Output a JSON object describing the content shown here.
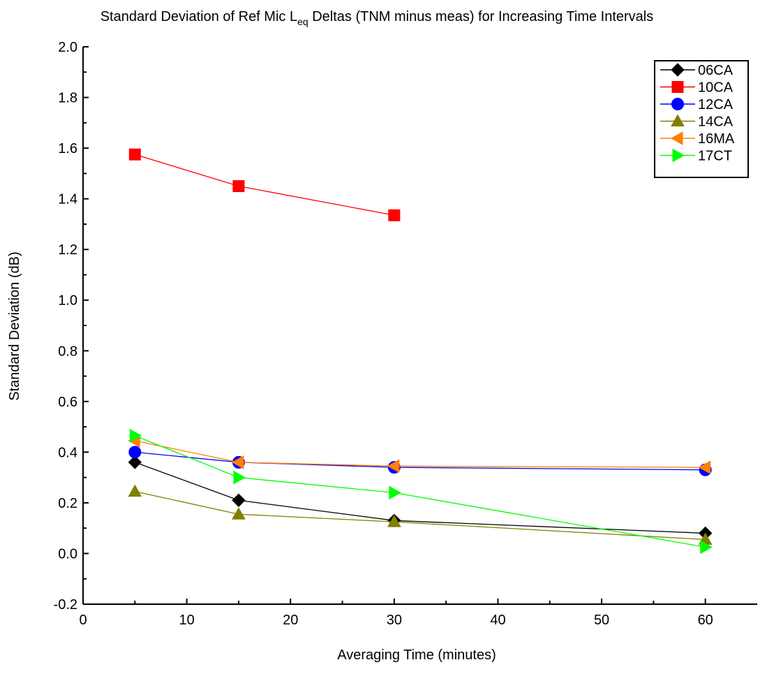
{
  "chart_data": {
    "type": "line",
    "title_prefix": "Standard Deviation of Ref Mic L",
    "title_subscript": "eq",
    "title_suffix": " Deltas (TNM minus meas) for Increasing Time Intervals",
    "xlabel": "Averaging Time (minutes)",
    "ylabel": "Standard Deviation (dB)",
    "xlim": [
      0,
      65
    ],
    "ylim": [
      -0.2,
      2.0
    ],
    "x_ticks": [
      0,
      10,
      20,
      30,
      40,
      50,
      60
    ],
    "y_ticks": [
      -0.2,
      0.0,
      0.2,
      0.4,
      0.6,
      0.8,
      1.0,
      1.2,
      1.4,
      1.6,
      1.8,
      2.0
    ],
    "y_tick_labels": [
      "-0.2",
      "0.0",
      "0.2",
      "0.4",
      "0.6",
      "0.8",
      "1.0",
      "1.2",
      "1.4",
      "1.6",
      "1.8",
      "2.0"
    ],
    "x_tick_labels": [
      "0",
      "10",
      "20",
      "30",
      "40",
      "50",
      "60"
    ],
    "grid": false,
    "legend_position": "top-right",
    "series": [
      {
        "name": "06CA",
        "color": "#000000",
        "marker": "diamond",
        "x": [
          5,
          15,
          30,
          60
        ],
        "y": [
          0.36,
          0.21,
          0.13,
          0.08
        ]
      },
      {
        "name": "10CA",
        "color": "#ff0000",
        "marker": "square",
        "x": [
          5,
          15,
          30
        ],
        "y": [
          1.575,
          1.45,
          1.335
        ]
      },
      {
        "name": "12CA",
        "color": "#0000ff",
        "marker": "circle",
        "x": [
          5,
          15,
          30,
          60
        ],
        "y": [
          0.4,
          0.36,
          0.34,
          0.33
        ]
      },
      {
        "name": "14CA",
        "color": "#808000",
        "marker": "triangle-up",
        "x": [
          5,
          15,
          30,
          60
        ],
        "y": [
          0.245,
          0.155,
          0.125,
          0.055
        ]
      },
      {
        "name": "16MA",
        "color": "#ff8000",
        "marker": "triangle-left",
        "x": [
          5,
          15,
          30,
          60
        ],
        "y": [
          0.445,
          0.36,
          0.345,
          0.34
        ]
      },
      {
        "name": "17CT",
        "color": "#00ff00",
        "marker": "triangle-right",
        "x": [
          5,
          15,
          30,
          60
        ],
        "y": [
          0.465,
          0.3,
          0.24,
          0.025
        ]
      }
    ]
  }
}
